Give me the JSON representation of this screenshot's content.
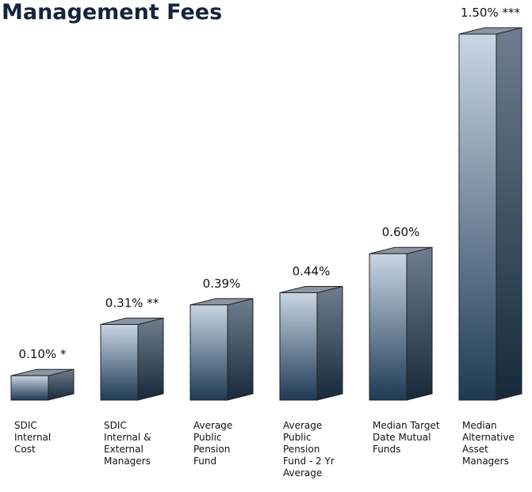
{
  "chart_data": {
    "type": "bar3d",
    "title": "Management Fees",
    "categories": [
      "SDIC Internal Cost",
      "SDIC Internal & External Managers",
      "Average Public Pension Fund",
      "Average Public Pension Fund - 2 Yr Average",
      "Median Target Date Mutual Funds",
      "Median Alternative Asset Managers"
    ],
    "values": [
      0.1,
      0.31,
      0.39,
      0.44,
      0.6,
      1.5
    ],
    "value_labels": [
      "0.10% *",
      "0.31% **",
      "0.39%",
      "0.44%",
      "0.60%",
      "1.50% ***"
    ],
    "color": "#1f3a54"
  }
}
